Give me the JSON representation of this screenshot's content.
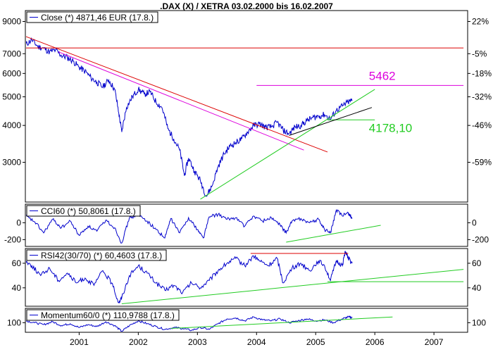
{
  "title": ".DAX (X) / XETRA 03.02.2000 bis 16.02.2007",
  "colors": {
    "series": "#0000cc",
    "red": "#dd0000",
    "magenta": "#dd00dd",
    "green": "#22cc22",
    "black": "#000000",
    "axis": "#000000"
  },
  "chart_data": [
    {
      "type": "line",
      "legend": "Close (*) 4871,46 EUR (17.8.)",
      "scale": "log",
      "ylim": [
        2200,
        9800
      ],
      "left_ticks": [
        "9000",
        "7000",
        "6000",
        "5000",
        "4000",
        "3000"
      ],
      "left_tick_values": [
        9000,
        7000,
        6000,
        5000,
        4000,
        3000
      ],
      "right_ticks": [
        "22%",
        "-5%",
        "-18%",
        "-32%",
        "-46%",
        "-59%"
      ],
      "right_tick_values": [
        9000,
        7000,
        6000,
        5000,
        4000,
        3000
      ],
      "annotations": [
        {
          "text": "5462",
          "color": "#dd00dd",
          "x": 2005.9,
          "y": 5700
        },
        {
          "text": "4178,10",
          "color": "#22cc22",
          "x": 2005.9,
          "y": 3800
        }
      ],
      "x": [
        2000.09,
        2000.2,
        2000.3,
        2000.4,
        2000.5,
        2000.6,
        2000.7,
        2000.8,
        2000.9,
        2001.0,
        2001.1,
        2001.2,
        2001.3,
        2001.4,
        2001.5,
        2001.6,
        2001.67,
        2001.72,
        2001.8,
        2001.9,
        2002.0,
        2002.1,
        2002.2,
        2002.3,
        2002.4,
        2002.5,
        2002.6,
        2002.7,
        2002.78,
        2002.85,
        2002.95,
        2003.05,
        2003.15,
        2003.25,
        2003.35,
        2003.45,
        2003.55,
        2003.65,
        2003.75,
        2003.85,
        2003.95,
        2004.05,
        2004.15,
        2004.25,
        2004.35,
        2004.45,
        2004.55,
        2004.65,
        2004.75,
        2004.85,
        2004.95,
        2005.05,
        2005.15,
        2005.25,
        2005.35,
        2005.45,
        2005.55,
        2005.62
      ],
      "values": [
        7500,
        7800,
        7400,
        7300,
        7100,
        7200,
        6900,
        6800,
        6600,
        6300,
        6100,
        5800,
        5600,
        5400,
        5700,
        5300,
        4400,
        3800,
        4600,
        5000,
        5300,
        5100,
        5200,
        4800,
        4600,
        3900,
        3600,
        3300,
        2700,
        3100,
        2800,
        2600,
        2300,
        2500,
        2900,
        3200,
        3400,
        3500,
        3600,
        3800,
        4000,
        4050,
        3950,
        3950,
        4100,
        3850,
        3750,
        3950,
        4000,
        4150,
        4250,
        4300,
        4350,
        4200,
        4500,
        4650,
        4800,
        4871
      ],
      "lines": [
        {
          "color": "#dd0000",
          "x1": 2000.1,
          "y1": 8000,
          "x2": 2005.2,
          "y2": 3250
        },
        {
          "color": "#dd00dd",
          "x1": 2000.65,
          "y1": 7100,
          "x2": 2004.8,
          "y2": 3300
        },
        {
          "color": "#dd0000",
          "x1": 2000.1,
          "y1": 7320,
          "x2": 2007.5,
          "y2": 7320
        },
        {
          "color": "#dd00dd",
          "x1": 2004.0,
          "y1": 5462,
          "x2": 2007.5,
          "y2": 5462
        },
        {
          "color": "#22cc22",
          "x1": 2003.05,
          "y1": 2250,
          "x2": 2006.0,
          "y2": 5300
        },
        {
          "color": "#22cc22",
          "x1": 2005.2,
          "y1": 4178,
          "x2": 2006.0,
          "y2": 4178
        },
        {
          "color": "#000000",
          "x1": 2004.55,
          "y1": 3700,
          "x2": 2005.95,
          "y2": 4600
        }
      ]
    },
    {
      "type": "line",
      "legend": "CCI60 (*) 50,8061 (17.8.)",
      "ylim": [
        -280,
        220
      ],
      "left_ticks": [
        "0",
        "-200"
      ],
      "left_tick_values": [
        0,
        -200
      ],
      "right_ticks": [
        "0",
        "-200"
      ],
      "right_tick_values": [
        0,
        -200
      ],
      "x": [
        2000.09,
        2000.25,
        2000.4,
        2000.55,
        2000.7,
        2000.85,
        2001.0,
        2001.15,
        2001.3,
        2001.45,
        2001.6,
        2001.72,
        2001.85,
        2002.0,
        2002.15,
        2002.3,
        2002.45,
        2002.55,
        2002.7,
        2002.85,
        2003.0,
        2003.1,
        2003.2,
        2003.35,
        2003.5,
        2003.65,
        2003.8,
        2003.95,
        2004.1,
        2004.25,
        2004.4,
        2004.5,
        2004.6,
        2004.75,
        2004.9,
        2005.05,
        2005.15,
        2005.25,
        2005.35,
        2005.45,
        2005.55,
        2005.62
      ],
      "values": [
        80,
        10,
        -120,
        40,
        -60,
        20,
        -150,
        -40,
        -100,
        30,
        -60,
        -240,
        60,
        90,
        20,
        -80,
        -180,
        50,
        -120,
        60,
        -80,
        -180,
        70,
        100,
        40,
        60,
        -40,
        80,
        20,
        60,
        -30,
        -120,
        20,
        50,
        0,
        40,
        -80,
        -120,
        150,
        80,
        120,
        51
      ],
      "lines": [
        {
          "color": "#22cc22",
          "x1": 2004.5,
          "y1": -230,
          "x2": 2006.1,
          "y2": -30
        }
      ]
    },
    {
      "type": "line",
      "legend": "RSI42(30/70) (*) 60,4603 (17.8.)",
      "ylim": [
        25,
        72
      ],
      "left_ticks": [
        "60",
        "40"
      ],
      "left_tick_values": [
        60,
        40
      ],
      "right_ticks": [
        "60",
        "40"
      ],
      "right_tick_values": [
        60,
        40
      ],
      "x": [
        2000.09,
        2000.2,
        2000.35,
        2000.5,
        2000.65,
        2000.8,
        2000.95,
        2001.1,
        2001.25,
        2001.4,
        2001.55,
        2001.67,
        2001.72,
        2001.85,
        2002.0,
        2002.15,
        2002.3,
        2002.45,
        2002.6,
        2002.75,
        2002.9,
        2003.05,
        2003.2,
        2003.35,
        2003.5,
        2003.65,
        2003.8,
        2003.95,
        2004.05,
        2004.2,
        2004.35,
        2004.45,
        2004.6,
        2004.75,
        2004.9,
        2005.05,
        2005.15,
        2005.25,
        2005.35,
        2005.45,
        2005.5,
        2005.55,
        2005.62
      ],
      "values": [
        62,
        58,
        50,
        56,
        46,
        52,
        44,
        48,
        42,
        54,
        44,
        28,
        32,
        50,
        58,
        52,
        44,
        38,
        42,
        36,
        44,
        40,
        46,
        54,
        60,
        64,
        58,
        66,
        62,
        58,
        64,
        44,
        56,
        60,
        54,
        62,
        58,
        46,
        62,
        58,
        70,
        64,
        60
      ],
      "lines": [
        {
          "color": "#dd0000",
          "x1": 2003.9,
          "y1": 68,
          "x2": 2005.55,
          "y2": 68
        },
        {
          "color": "#22cc22",
          "x1": 2001.72,
          "y1": 27,
          "x2": 2007.5,
          "y2": 55
        },
        {
          "color": "#22cc22",
          "x1": 2005.2,
          "y1": 45,
          "x2": 2007.5,
          "y2": 45
        }
      ]
    },
    {
      "type": "line",
      "legend": "Momentum60/0 (*) 110,9788 (17.8.)",
      "ylim": [
        80,
        130
      ],
      "left_ticks": [
        "100"
      ],
      "left_tick_values": [
        100
      ],
      "right_ticks": [
        "100"
      ],
      "right_tick_values": [
        100
      ],
      "x_ticks": [
        "2001",
        "2002",
        "2003",
        "2004",
        "2005",
        "2006",
        "2007"
      ],
      "x_tick_values": [
        2001,
        2002,
        2003,
        2004,
        2005,
        2006,
        2007
      ],
      "xlim": [
        2000.09,
        2007.57
      ],
      "x": [
        2000.09,
        2000.25,
        2000.4,
        2000.55,
        2000.7,
        2000.85,
        2001.0,
        2001.15,
        2001.3,
        2001.45,
        2001.6,
        2001.72,
        2001.85,
        2002.0,
        2002.15,
        2002.3,
        2002.45,
        2002.6,
        2002.75,
        2002.9,
        2003.05,
        2003.2,
        2003.35,
        2003.5,
        2003.65,
        2003.8,
        2003.95,
        2004.1,
        2004.25,
        2004.4,
        2004.55,
        2004.7,
        2004.85,
        2005.0,
        2005.15,
        2005.3,
        2005.45,
        2005.55,
        2005.62
      ],
      "values": [
        104,
        100,
        96,
        102,
        94,
        98,
        90,
        96,
        92,
        102,
        94,
        82,
        94,
        104,
        98,
        92,
        86,
        90,
        88,
        84,
        90,
        86,
        98,
        108,
        110,
        104,
        112,
        106,
        104,
        108,
        100,
        104,
        108,
        104,
        106,
        100,
        108,
        112,
        111
      ],
      "lines": [
        {
          "color": "#22cc22",
          "x1": 2002.55,
          "y1": 88,
          "x2": 2006.3,
          "y2": 112
        }
      ]
    }
  ]
}
